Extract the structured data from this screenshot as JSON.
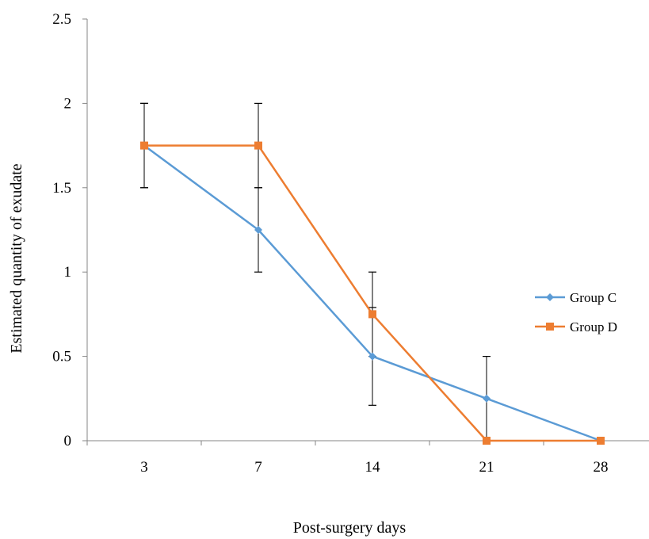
{
  "chart_data": {
    "type": "line",
    "title": "",
    "xlabel": "Post-surgery days",
    "ylabel": "Estimated quantity of exudate",
    "categories": [
      "3",
      "7",
      "14",
      "21",
      "28"
    ],
    "ylim": [
      0,
      2.5
    ],
    "yticks": [
      0,
      0.5,
      1,
      1.5,
      2,
      2.5
    ],
    "ytick_labels": [
      "0",
      "0.5",
      "1",
      "1.5",
      "2",
      "2.5"
    ],
    "grid": false,
    "legend_position": "right",
    "series": [
      {
        "name": "Group C",
        "color": "#5B9BD5",
        "marker": "diamond",
        "values": [
          1.75,
          1.25,
          0.5,
          0.25,
          0
        ],
        "error_low": [
          1.5,
          1.0,
          0.21,
          0.0,
          0
        ],
        "error_high": [
          2.0,
          1.5,
          0.79,
          0.5,
          0
        ]
      },
      {
        "name": "Group D",
        "color": "#ED7D31",
        "marker": "square",
        "values": [
          1.75,
          1.75,
          0.75,
          0,
          0
        ],
        "error_low": [
          1.5,
          1.5,
          0.5,
          0,
          0
        ],
        "error_high": [
          2.0,
          2.0,
          1.0,
          0,
          0
        ]
      }
    ]
  }
}
